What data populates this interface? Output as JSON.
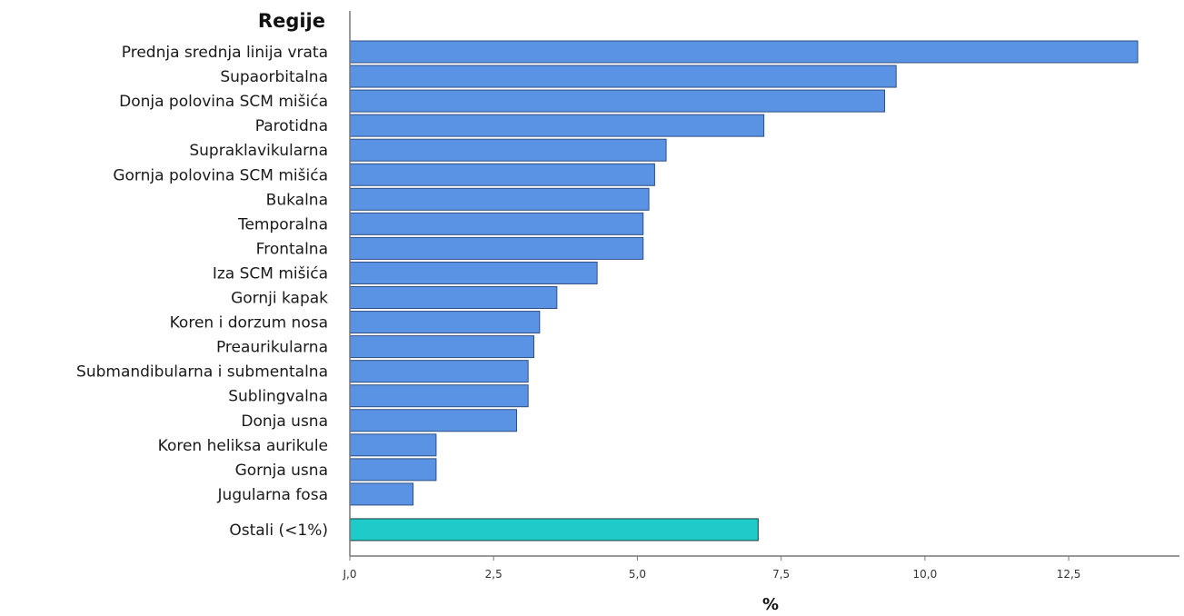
{
  "chart_data": {
    "type": "bar",
    "orientation": "horizontal",
    "ylabel": "Regije",
    "xlabel": "%",
    "xlim": [
      0,
      14.3
    ],
    "xticks": [
      0,
      2.5,
      5,
      7.5,
      10,
      12.5
    ],
    "xtick_labels": [
      "J,0",
      "2,5",
      "5,0",
      "7,5",
      "10,0",
      "12,5"
    ],
    "grid": false,
    "categories": [
      "Prednja srednja linija vrata",
      "Supaorbitalna",
      "Donja polovina SCM mišića",
      "Parotidna",
      "Supraklavikularna",
      "Gornja polovina SCM mišića",
      "Bukalna",
      "Temporalna",
      "Frontalna",
      "Iza SCM mišića",
      "Gornji kapak",
      "Koren i dorzum nosa",
      "Preaurikularna",
      "Submandibularna i submentalna",
      "Sublingvalna",
      "Donja usna",
      "Koren heliksa aurikule",
      "Gornja usna",
      "Jugularna fosa",
      "Ostali (<1%)"
    ],
    "values": [
      13.7,
      9.5,
      9.3,
      7.2,
      5.5,
      5.3,
      5.2,
      5.1,
      5.1,
      4.3,
      3.6,
      3.3,
      3.2,
      3.1,
      3.1,
      2.9,
      1.5,
      1.5,
      1.1,
      7.1
    ],
    "colors": {
      "default_bar": "#5b93e4",
      "default_bar_edge": "#2f4f80",
      "highlight_bar": "#1ecbc8",
      "highlight_bar_edge": "#1a3b3a",
      "axis": "#777777"
    },
    "highlight_index": 19
  }
}
